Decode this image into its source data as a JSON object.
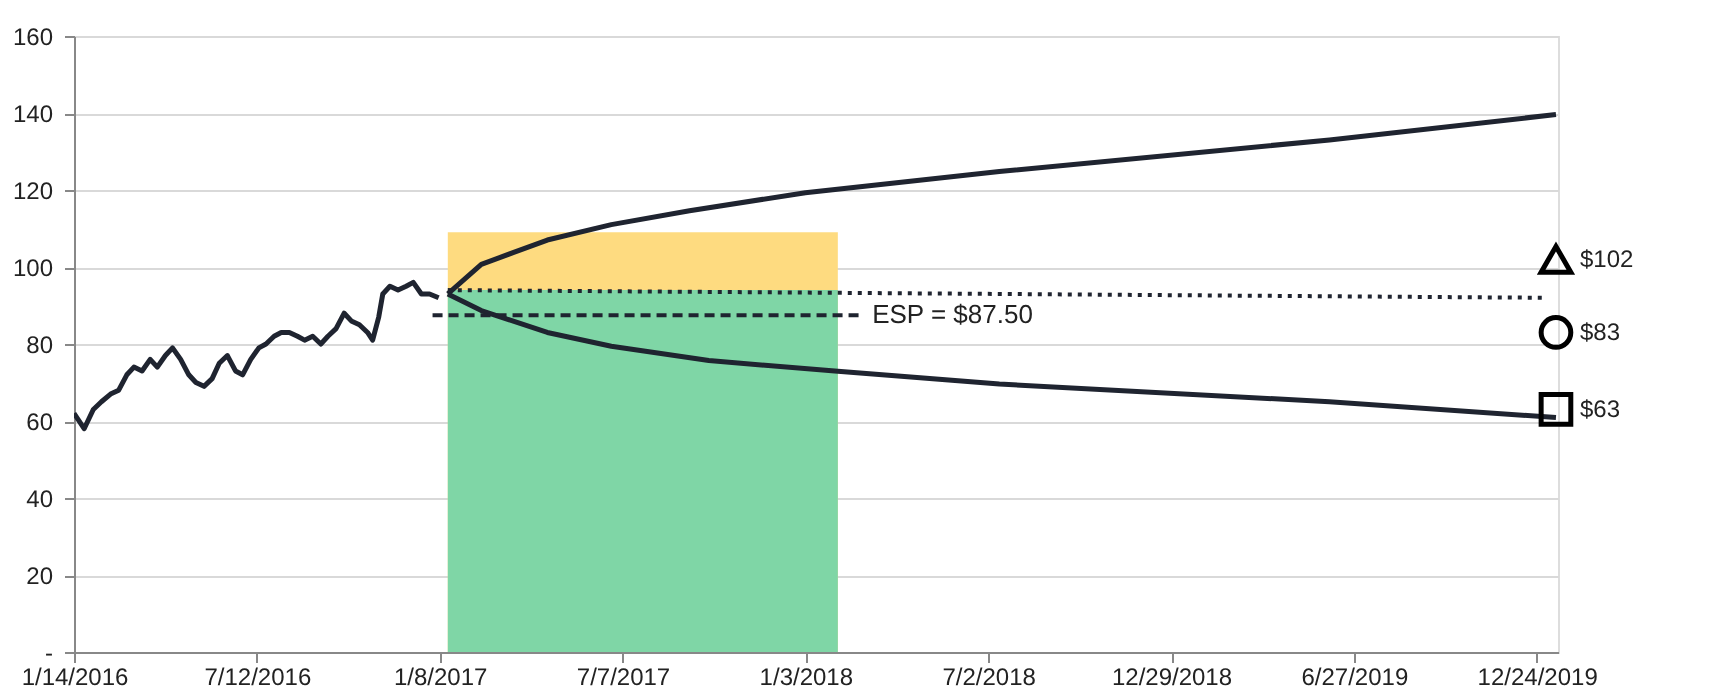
{
  "chart_data": {
    "type": "line",
    "xlim": [
      "2016-01-14",
      "2020-01-14"
    ],
    "xticks": [
      {
        "value": "2016-01-14",
        "label": "1/14/2016"
      },
      {
        "value": "2016-07-12",
        "label": "7/12/2016"
      },
      {
        "value": "2017-01-08",
        "label": "1/8/2017"
      },
      {
        "value": "2017-07-07",
        "label": "7/7/2017"
      },
      {
        "value": "2018-01-03",
        "label": "1/3/2018"
      },
      {
        "value": "2018-07-02",
        "label": "7/2/2018"
      },
      {
        "value": "2018-12-29",
        "label": "12/29/2018"
      },
      {
        "value": "2019-06-27",
        "label": "6/27/2019"
      },
      {
        "value": "2019-12-24",
        "label": "12/24/2019"
      }
    ],
    "ylim": [
      0,
      160
    ],
    "yticks": [
      {
        "value": 0,
        "label": "-"
      },
      20,
      40,
      60,
      80,
      100,
      120,
      140,
      160
    ],
    "grid": "y",
    "annotations": [
      {
        "text": "ESP = $87.50",
        "x": "2018-02-26",
        "y": 87.5
      }
    ],
    "series": [
      {
        "type": "area",
        "color": "#fedb80",
        "x": [
          "2017-01-16",
          "2018-02-04"
        ],
        "values": [
          109,
          109
        ]
      },
      {
        "type": "area",
        "color": "#7fd6a6",
        "x": [
          "2017-01-16",
          "2018-02-04"
        ],
        "values": [
          94,
          94
        ]
      },
      {
        "color": "#1f2430",
        "line_style": "solid",
        "x": [
          "2016-01-14",
          "2016-01-24",
          "2016-02-02",
          "2016-02-10",
          "2016-02-19",
          "2016-02-27",
          "2016-03-06",
          "2016-03-13",
          "2016-03-21",
          "2016-03-29",
          "2016-04-05",
          "2016-04-13",
          "2016-04-20",
          "2016-04-28",
          "2016-05-06",
          "2016-05-13",
          "2016-05-21",
          "2016-05-29",
          "2016-06-05",
          "2016-06-13",
          "2016-06-21",
          "2016-06-28",
          "2016-07-06",
          "2016-07-14",
          "2016-07-21",
          "2016-07-29",
          "2016-08-05",
          "2016-08-13",
          "2016-08-21",
          "2016-08-28",
          "2016-09-05",
          "2016-09-13",
          "2016-09-20",
          "2016-09-28",
          "2016-10-06",
          "2016-10-13",
          "2016-10-21",
          "2016-10-29",
          "2016-11-03",
          "2016-11-09",
          "2016-11-13",
          "2016-11-20",
          "2016-11-28",
          "2016-12-06",
          "2016-12-13",
          "2016-12-21",
          "2016-12-29",
          "2017-01-07"
        ],
        "values": [
          62,
          58,
          63,
          65,
          67,
          68,
          72,
          74,
          73,
          76,
          74,
          77,
          79,
          76,
          72,
          70,
          69,
          71,
          75,
          77,
          73,
          72,
          76,
          79,
          80,
          82,
          83,
          83,
          82,
          81,
          82,
          80,
          82,
          84,
          88,
          86,
          85,
          83,
          81,
          87,
          93,
          95,
          94,
          95,
          96,
          93,
          93,
          92
        ]
      },
      {
        "color": "#1f2430",
        "line_style": "solid",
        "x": [
          "2017-01-16",
          "2017-02-18",
          "2017-04-24",
          "2017-06-26",
          "2017-09-11",
          "2018-01-03",
          "2018-07-13",
          "2019-06-03",
          "2020-01-12"
        ],
        "values": [
          93,
          100.7,
          107,
          111,
          114.6,
          119.3,
          124.8,
          133,
          139.6
        ]
      },
      {
        "color": "#1f2430",
        "line_style": "solid",
        "x": [
          "2017-01-16",
          "2017-02-18",
          "2017-04-24",
          "2017-06-26",
          "2017-09-30",
          "2018-02-04",
          "2018-07-13",
          "2019-06-03",
          "2020-01-12"
        ],
        "values": [
          93,
          88.7,
          83,
          79.4,
          75.7,
          72.9,
          69.6,
          65,
          60.9
        ]
      },
      {
        "color": "#1f2430",
        "line_style": "dotted",
        "x": [
          "2017-01-16",
          "2018-07-13",
          "2020-01-03"
        ],
        "values": [
          94,
          93,
          92
        ]
      },
      {
        "color": "#1f2430",
        "line_style": "dashed",
        "x": [
          "2017-01-01",
          "2018-02-26"
        ],
        "values": [
          87.5,
          87.5
        ]
      },
      {
        "type": "scatter",
        "marker": "triangle",
        "color": "#000000",
        "x": [
          "2020-01-12"
        ],
        "values": [
          102
        ],
        "value_labels": [
          "$102"
        ]
      },
      {
        "type": "scatter",
        "marker": "circle",
        "color": "#000000",
        "x": [
          "2020-01-12"
        ],
        "values": [
          83
        ],
        "value_labels": [
          "$83"
        ]
      },
      {
        "type": "scatter",
        "marker": "square",
        "color": "#000000",
        "x": [
          "2020-01-12"
        ],
        "values": [
          63
        ],
        "value_labels": [
          "$63"
        ]
      }
    ]
  }
}
